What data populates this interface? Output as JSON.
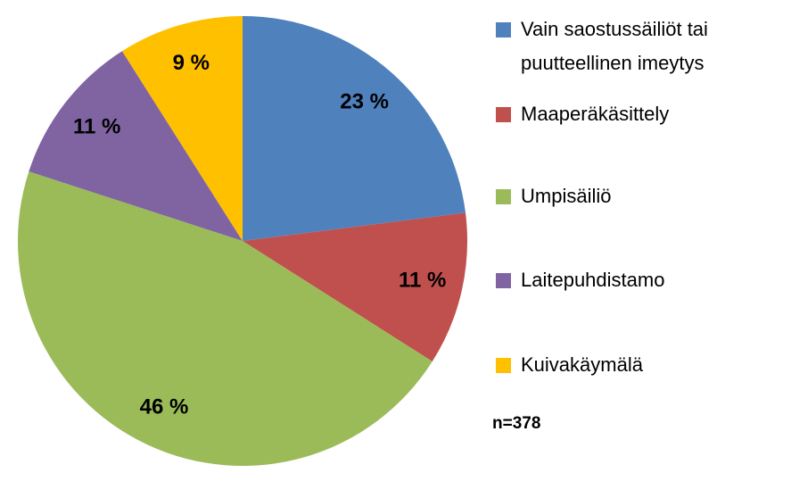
{
  "chart_data": {
    "type": "pie",
    "categories": [
      "Vain saostussäiliöt tai puutteellinen imeytys",
      "Maaperäkäsittely",
      "Umpisäiliö",
      "Laitepuhdistamo",
      "Kuivakäymälä"
    ],
    "values": [
      23,
      11,
      46,
      11,
      9
    ],
    "value_labels": [
      "23 %",
      "11 %",
      "46 %",
      "11 %",
      "9 %"
    ],
    "colors": [
      "#4f81bd",
      "#c0504d",
      "#9bbb59",
      "#8064a2",
      "#ffc000"
    ],
    "legend": "right",
    "annotation": "n=378"
  }
}
